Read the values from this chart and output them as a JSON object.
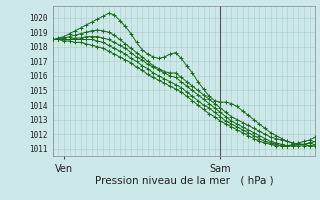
{
  "bg_color": "#cce8e8",
  "grid_color": "#aacccc",
  "line_color": "#1a6b1a",
  "marker_color": "#1a6b1a",
  "vline_color": "#555555",
  "xlabel": "Pression niveau de la mer ( hPa )",
  "xlabel_fontsize": 7.5,
  "ylabel_ticks": [
    1011,
    1012,
    1013,
    1014,
    1015,
    1016,
    1017,
    1018,
    1019,
    1020
  ],
  "ylim": [
    1010.5,
    1020.8
  ],
  "xlim": [
    0,
    47
  ],
  "xtick_labels": [
    "Ven",
    "Sam"
  ],
  "xtick_positions": [
    2,
    30
  ],
  "vline_x": 30,
  "series": [
    [
      1018.5,
      1018.6,
      1018.7,
      1018.9,
      1019.1,
      1019.3,
      1019.5,
      1019.7,
      1019.9,
      1020.1,
      1020.3,
      1020.2,
      1019.8,
      1019.4,
      1018.9,
      1018.3,
      1017.8,
      1017.5,
      1017.3,
      1017.2,
      1017.3,
      1017.5,
      1017.6,
      1017.2,
      1016.7,
      1016.2,
      1015.6,
      1015.1,
      1014.6,
      1014.3,
      1014.2,
      1014.2,
      1014.1,
      1013.9,
      1013.6,
      1013.3,
      1013.0,
      1012.7,
      1012.4,
      1012.1,
      1011.9,
      1011.7,
      1011.5,
      1011.4,
      1011.3,
      1011.3,
      1011.4,
      1011.5
    ],
    [
      1018.5,
      1018.5,
      1018.6,
      1018.7,
      1018.8,
      1018.9,
      1019.0,
      1019.1,
      1019.15,
      1019.1,
      1019.0,
      1018.8,
      1018.5,
      1018.2,
      1017.9,
      1017.6,
      1017.3,
      1017.0,
      1016.7,
      1016.5,
      1016.3,
      1016.2,
      1016.2,
      1015.9,
      1015.6,
      1015.3,
      1015.0,
      1014.7,
      1014.4,
      1014.1,
      1013.8,
      1013.5,
      1013.2,
      1013.0,
      1012.8,
      1012.6,
      1012.4,
      1012.2,
      1012.0,
      1011.8,
      1011.7,
      1011.6,
      1011.5,
      1011.4,
      1011.3,
      1011.3,
      1011.2,
      1011.2
    ],
    [
      1018.5,
      1018.5,
      1018.5,
      1018.5,
      1018.6,
      1018.6,
      1018.7,
      1018.7,
      1018.7,
      1018.6,
      1018.5,
      1018.3,
      1018.1,
      1017.9,
      1017.6,
      1017.3,
      1017.1,
      1016.8,
      1016.6,
      1016.4,
      1016.2,
      1016.0,
      1015.9,
      1015.6,
      1015.3,
      1015.0,
      1014.7,
      1014.4,
      1014.1,
      1013.8,
      1013.5,
      1013.2,
      1012.9,
      1012.7,
      1012.5,
      1012.3,
      1012.1,
      1011.9,
      1011.7,
      1011.5,
      1011.4,
      1011.3,
      1011.2,
      1011.2,
      1011.2,
      1011.2,
      1011.2,
      1011.3
    ],
    [
      1018.5,
      1018.5,
      1018.5,
      1018.5,
      1018.5,
      1018.5,
      1018.5,
      1018.5,
      1018.4,
      1018.3,
      1018.1,
      1017.9,
      1017.7,
      1017.5,
      1017.2,
      1017.0,
      1016.7,
      1016.5,
      1016.2,
      1016.0,
      1015.8,
      1015.6,
      1015.4,
      1015.2,
      1014.9,
      1014.6,
      1014.3,
      1014.0,
      1013.8,
      1013.5,
      1013.2,
      1012.9,
      1012.7,
      1012.5,
      1012.3,
      1012.1,
      1011.9,
      1011.7,
      1011.5,
      1011.4,
      1011.3,
      1011.2,
      1011.2,
      1011.2,
      1011.3,
      1011.3,
      1011.4,
      1011.5
    ],
    [
      1018.5,
      1018.5,
      1018.4,
      1018.4,
      1018.3,
      1018.3,
      1018.2,
      1018.1,
      1018.0,
      1017.9,
      1017.7,
      1017.5,
      1017.3,
      1017.1,
      1016.9,
      1016.6,
      1016.4,
      1016.1,
      1015.9,
      1015.7,
      1015.5,
      1015.3,
      1015.1,
      1014.9,
      1014.6,
      1014.3,
      1014.0,
      1013.7,
      1013.4,
      1013.2,
      1012.9,
      1012.7,
      1012.5,
      1012.3,
      1012.1,
      1011.9,
      1011.7,
      1011.5,
      1011.4,
      1011.3,
      1011.2,
      1011.2,
      1011.2,
      1011.3,
      1011.4,
      1011.5,
      1011.6,
      1011.8
    ]
  ]
}
